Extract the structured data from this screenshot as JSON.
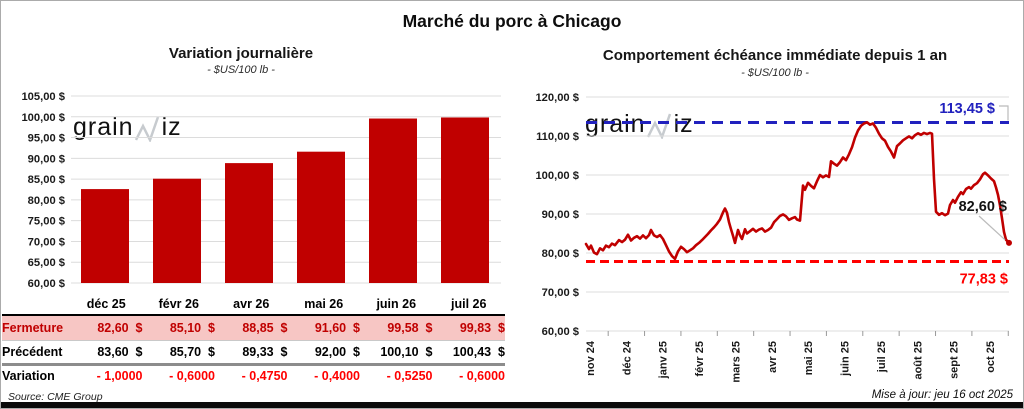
{
  "page": {
    "main_title": "Marché du porc à Chicago",
    "source": "Source: CME Group",
    "updated": "Mise à jour: jeu 16 oct 2025",
    "watermark": {
      "pre": "grain",
      "post": "iz"
    }
  },
  "colors": {
    "bar": "#C00000",
    "line": "#C00000",
    "grid": "#DCDCDC",
    "axis_text": "#1a1a1a",
    "ref_high": "#2121BE",
    "ref_low": "#FF0000",
    "pink_row": "#F7C6C4",
    "dark_red": "#C00000",
    "bright_red": "#FF0000",
    "watermark": "#C7CBCF",
    "leader": "#BBBBBB",
    "tick": "#9a9a9a"
  },
  "table": {
    "columns": [
      "déc 25",
      "févr 26",
      "avr 26",
      "mai 26",
      "juin 26",
      "juil 26"
    ],
    "rows": [
      {
        "label": "Fermeture",
        "style": "row-ferm",
        "values": [
          "82,60  $",
          "85,10  $",
          "88,85  $",
          "91,60  $",
          "99,58  $",
          "99,83  $"
        ]
      },
      {
        "label": "Précédent",
        "style": "row-prec",
        "values": [
          "83,60  $",
          "85,70  $",
          "89,33  $",
          "92,00  $",
          "100,10  $",
          "100,43  $"
        ]
      },
      {
        "label": "Variation",
        "style": "row-var",
        "values": [
          "- 1,0000",
          "- 0,6000",
          "- 0,4750",
          "- 0,4000",
          "- 0,5250",
          "- 0,6000"
        ]
      }
    ]
  },
  "chart_data": [
    {
      "type": "bar",
      "title": "Variation  journalière",
      "subtitle": "- $US/100 lb -",
      "categories": [
        "déc 25",
        "févr 26",
        "avr 26",
        "mai 26",
        "juin 26",
        "juil 26"
      ],
      "values": [
        82.6,
        85.1,
        88.85,
        91.6,
        99.58,
        99.83
      ],
      "ylim": [
        60,
        105
      ],
      "ytick_step": 5,
      "ytick_labels": [
        "105,00 $",
        "100,00 $",
        "95,00 $",
        "90,00 $",
        "85,00 $",
        "80,00 $",
        "75,00 $",
        "70,00 $",
        "65,00 $",
        "60,00 $"
      ],
      "grid": true,
      "legend": "none"
    },
    {
      "type": "line",
      "title": "Comportement  échéance immédiate depuis 1 an",
      "subtitle": "- $US/100 lb -",
      "x_ticks": [
        "nov 24",
        "déc 24",
        "janv 25",
        "févr 25",
        "mars 25",
        "avr 25",
        "mai 25",
        "juin 25",
        "juil 25",
        "août 25",
        "sept 25",
        "oct 25"
      ],
      "ylim": [
        60,
        120
      ],
      "ytick_step": 10,
      "ytick_labels": [
        "120,00 $",
        "110,00 $",
        "100,00 $",
        "90,00 $",
        "80,00 $",
        "70,00 $",
        "60,00 $"
      ],
      "grid": true,
      "ref_lines": [
        {
          "value": 113.45,
          "label": "113,45 $",
          "role": "high"
        },
        {
          "value": 77.83,
          "label": "77,83 $",
          "role": "low"
        }
      ],
      "end_label": "82,60 $",
      "end_value": 82.6,
      "points": [
        [
          0,
          82.3
        ],
        [
          3,
          81.0
        ],
        [
          5,
          81.9
        ],
        [
          8,
          80.1
        ],
        [
          11,
          79.7
        ],
        [
          14,
          81.2
        ],
        [
          17,
          80.7
        ],
        [
          20,
          81.9
        ],
        [
          23,
          81.5
        ],
        [
          26,
          82.4
        ],
        [
          29,
          82.0
        ],
        [
          33,
          83.3
        ],
        [
          36,
          82.8
        ],
        [
          39,
          83.4
        ],
        [
          42,
          84.7
        ],
        [
          45,
          83.2
        ],
        [
          48,
          83.9
        ],
        [
          51,
          84.3
        ],
        [
          54,
          83.7
        ],
        [
          57,
          84.5
        ],
        [
          60,
          83.8
        ],
        [
          63,
          84.6
        ],
        [
          65,
          85.9
        ],
        [
          68,
          84.5
        ],
        [
          71,
          84.1
        ],
        [
          74,
          84.6
        ],
        [
          77,
          83.6
        ],
        [
          80,
          82.0
        ],
        [
          83,
          80.4
        ],
        [
          86,
          79.2
        ],
        [
          89,
          78.5
        ],
        [
          92,
          80.4
        ],
        [
          95,
          81.6
        ],
        [
          98,
          81.0
        ],
        [
          101,
          80.2
        ],
        [
          104,
          80.7
        ],
        [
          107,
          81.2
        ],
        [
          110,
          82.0
        ],
        [
          113,
          82.6
        ],
        [
          116,
          83.3
        ],
        [
          119,
          84.1
        ],
        [
          122,
          84.9
        ],
        [
          125,
          85.8
        ],
        [
          128,
          86.6
        ],
        [
          131,
          87.5
        ],
        [
          134,
          88.6
        ],
        [
          137,
          90.4
        ],
        [
          139,
          91.4
        ],
        [
          141,
          90.3
        ],
        [
          143,
          87.9
        ],
        [
          145,
          86.1
        ],
        [
          147,
          84.4
        ],
        [
          149,
          82.6
        ],
        [
          152,
          85.9
        ],
        [
          154,
          84.5
        ],
        [
          156,
          83.6
        ],
        [
          159,
          86.1
        ],
        [
          161,
          85.0
        ],
        [
          164,
          85.6
        ],
        [
          167,
          86.2
        ],
        [
          170,
          85.5
        ],
        [
          173,
          86.0
        ],
        [
          176,
          86.3
        ],
        [
          179,
          85.5
        ],
        [
          182,
          85.9
        ],
        [
          185,
          86.5
        ],
        [
          188,
          87.9
        ],
        [
          191,
          88.7
        ],
        [
          194,
          89.5
        ],
        [
          197,
          89.9
        ],
        [
          200,
          89.4
        ],
        [
          203,
          88.5
        ],
        [
          206,
          88.9
        ],
        [
          209,
          89.2
        ],
        [
          211,
          88.6
        ],
        [
          214,
          88.3
        ],
        [
          217,
          97.3
        ],
        [
          219,
          96.2
        ],
        [
          222,
          98.0
        ],
        [
          225,
          97.2
        ],
        [
          228,
          96.6
        ],
        [
          231,
          98.4
        ],
        [
          234,
          100.0
        ],
        [
          237,
          99.4
        ],
        [
          240,
          99.9
        ],
        [
          243,
          99.5
        ],
        [
          245,
          103.5
        ],
        [
          248,
          102.9
        ],
        [
          251,
          102.4
        ],
        [
          254,
          103.3
        ],
        [
          257,
          104.5
        ],
        [
          260,
          103.8
        ],
        [
          263,
          105.3
        ],
        [
          266,
          107.1
        ],
        [
          269,
          109.6
        ],
        [
          272,
          111.4
        ],
        [
          275,
          112.6
        ],
        [
          278,
          113.2
        ],
        [
          281,
          113.5
        ],
        [
          284,
          112.9
        ],
        [
          287,
          113.2
        ],
        [
          290,
          112.1
        ],
        [
          293,
          110.6
        ],
        [
          296,
          109.4
        ],
        [
          299,
          108.8
        ],
        [
          302,
          107.2
        ],
        [
          305,
          106.0
        ],
        [
          308,
          104.5
        ],
        [
          311,
          107.4
        ],
        [
          314,
          108.1
        ],
        [
          317,
          108.9
        ],
        [
          320,
          109.4
        ],
        [
          323,
          109.9
        ],
        [
          326,
          109.4
        ],
        [
          329,
          110.2
        ],
        [
          332,
          110.7
        ],
        [
          335,
          110.3
        ],
        [
          338,
          110.8
        ],
        [
          341,
          110.5
        ],
        [
          344,
          110.8
        ],
        [
          346,
          110.6
        ],
        [
          348,
          99.0
        ],
        [
          350,
          90.6
        ],
        [
          353,
          89.8
        ],
        [
          356,
          90.2
        ],
        [
          359,
          89.7
        ],
        [
          362,
          90.1
        ],
        [
          364,
          92.3
        ],
        [
          367,
          93.6
        ],
        [
          369,
          92.9
        ],
        [
          372,
          94.4
        ],
        [
          375,
          95.6
        ],
        [
          377,
          95.1
        ],
        [
          380,
          96.4
        ],
        [
          383,
          96.9
        ],
        [
          385,
          96.5
        ],
        [
          388,
          97.4
        ],
        [
          391,
          97.9
        ],
        [
          394,
          98.9
        ],
        [
          397,
          100.2
        ],
        [
          399,
          100.6
        ],
        [
          402,
          99.9
        ],
        [
          405,
          99.1
        ],
        [
          408,
          98.4
        ],
        [
          410,
          96.8
        ],
        [
          412,
          94.9
        ],
        [
          414,
          92.2
        ],
        [
          416,
          88.9
        ],
        [
          418,
          85.4
        ],
        [
          420,
          83.4
        ],
        [
          423,
          82.6
        ]
      ]
    }
  ]
}
